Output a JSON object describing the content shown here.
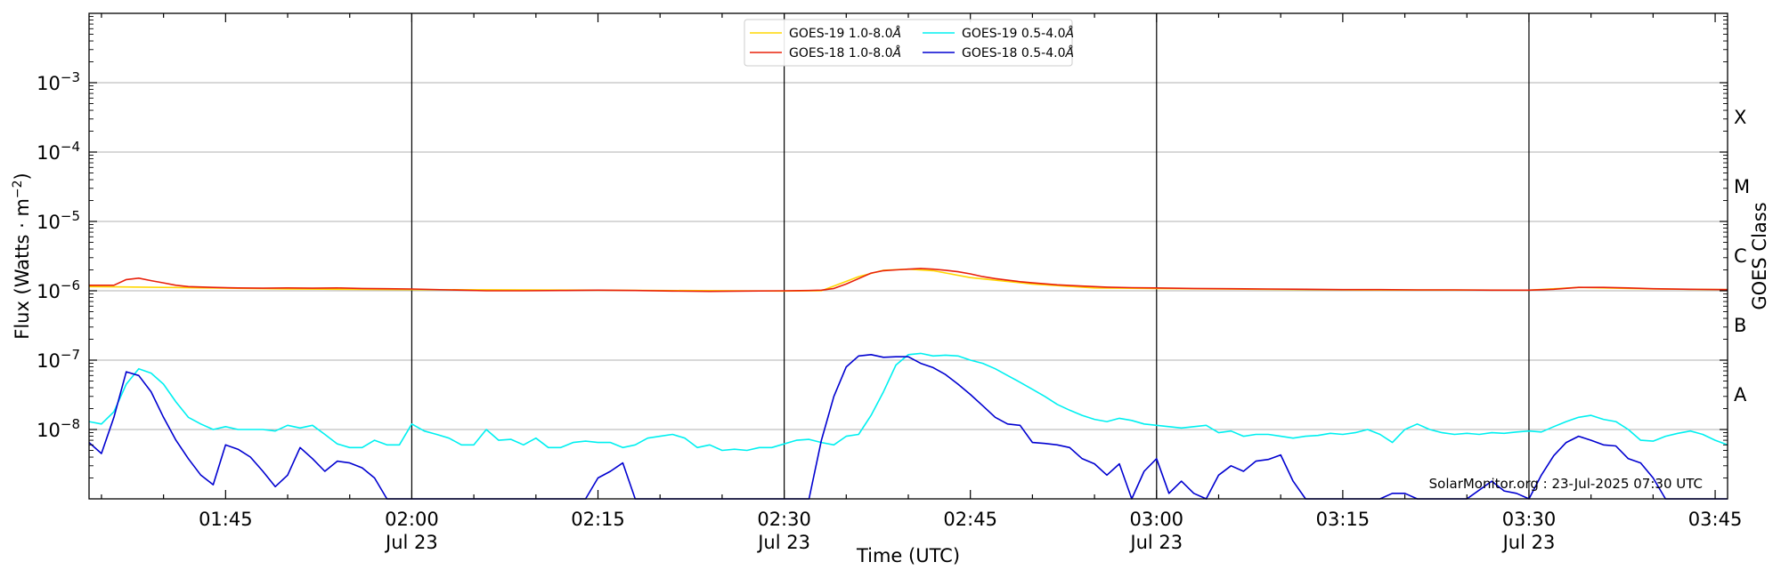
{
  "chart_data": {
    "type": "line",
    "title": "",
    "xlabel": "Time (UTC)",
    "ylabel": "Flux (Watts · m",
    "ylabel_sup": "−2",
    "ylabel_close": ")",
    "y2label": "GOES Class",
    "yscale": "log",
    "xlim": [
      "01:34",
      "03:46"
    ],
    "ylim": [
      1e-09,
      0.01
    ],
    "grid": "horizontal",
    "legend_position": "top-center",
    "credit": "SolarMonitor.org : 23-Jul-2025 07:30 UTC",
    "x_ticks": [
      {
        "value": "01:45",
        "label": "01:45",
        "sublabel": ""
      },
      {
        "value": "02:00",
        "label": "02:00",
        "sublabel": "Jul 23"
      },
      {
        "value": "02:15",
        "label": "02:15",
        "sublabel": ""
      },
      {
        "value": "02:30",
        "label": "02:30",
        "sublabel": "Jul 23"
      },
      {
        "value": "02:45",
        "label": "02:45",
        "sublabel": ""
      },
      {
        "value": "03:00",
        "label": "03:00",
        "sublabel": "Jul 23"
      },
      {
        "value": "03:15",
        "label": "03:15",
        "sublabel": ""
      },
      {
        "value": "03:30",
        "label": "03:30",
        "sublabel": "Jul 23"
      },
      {
        "value": "03:45",
        "label": "03:45",
        "sublabel": ""
      }
    ],
    "y_ticks": [
      {
        "value": 0.001,
        "base": "10",
        "exp": "−3"
      },
      {
        "value": 0.0001,
        "base": "10",
        "exp": "−4"
      },
      {
        "value": 1e-05,
        "base": "10",
        "exp": "−5"
      },
      {
        "value": 1e-06,
        "base": "10",
        "exp": "−6"
      },
      {
        "value": 1e-07,
        "base": "10",
        "exp": "−7"
      },
      {
        "value": 1e-08,
        "base": "10",
        "exp": "−8"
      }
    ],
    "vertical_lines": [
      "02:00",
      "02:30",
      "03:00",
      "03:30"
    ],
    "class_labels": [
      {
        "label": "X",
        "value": 0.000316
      },
      {
        "label": "M",
        "value": 3.16e-05
      },
      {
        "label": "C",
        "value": 3.16e-06
      },
      {
        "label": "B",
        "value": 3.16e-07
      },
      {
        "label": "A",
        "value": 3.16e-08
      }
    ],
    "legend_entries": [
      {
        "text": "GOES-19 1.0-8.0",
        "unit": "Å",
        "color": "#ffd700",
        "col": 0,
        "row": 0
      },
      {
        "text": "GOES-18 1.0-8.0",
        "unit": "Å",
        "color": "#e8200a",
        "col": 0,
        "row": 1
      },
      {
        "text": "GOES-19 0.5-4.0",
        "unit": "Å",
        "color": "#00f0f0",
        "col": 1,
        "row": 0
      },
      {
        "text": "GOES-18 0.5-4.0",
        "unit": "Å",
        "color": "#0000d0",
        "col": 1,
        "row": 1
      }
    ],
    "series": [
      {
        "name": "GOES-19 1.0-8.0Å",
        "color": "#ffd700",
        "x": [
          "01:34",
          "01:40",
          "01:50",
          "02:00",
          "02:15",
          "02:30",
          "02:33",
          "02:36",
          "02:38",
          "02:40",
          "02:42",
          "02:45",
          "02:50",
          "02:55",
          "03:00",
          "03:15",
          "03:30",
          "03:34",
          "03:40",
          "03:46"
        ],
        "values": [
          1.15e-06,
          1.12e-06,
          1.06e-06,
          1.04e-06,
          1.02e-06,
          9.9e-07,
          1e-06,
          1.6e-06,
          1.98e-06,
          2.05e-06,
          1.95e-06,
          1.55e-06,
          1.25e-06,
          1.1e-06,
          1.08e-06,
          1.03e-06,
          1.02e-06,
          1.12e-06,
          1.06e-06,
          1.04e-06
        ]
      },
      {
        "name": "GOES-18 1.0-8.0Å",
        "color": "#e8200a",
        "x": [
          "01:34",
          "01:35",
          "01:36",
          "01:37",
          "01:38",
          "01:39",
          "01:40",
          "01:41",
          "01:42",
          "01:44",
          "01:46",
          "01:48",
          "01:50",
          "01:52",
          "01:54",
          "01:56",
          "01:58",
          "02:00",
          "02:03",
          "02:06",
          "02:09",
          "02:12",
          "02:15",
          "02:18",
          "02:21",
          "02:24",
          "02:27",
          "02:30",
          "02:32",
          "02:33",
          "02:34",
          "02:35",
          "02:36",
          "02:37",
          "02:38",
          "02:39",
          "02:40",
          "02:41",
          "02:42",
          "02:43",
          "02:44",
          "02:45",
          "02:46",
          "02:47",
          "02:48",
          "02:49",
          "02:50",
          "02:52",
          "02:54",
          "02:56",
          "02:58",
          "03:00",
          "03:03",
          "03:06",
          "03:09",
          "03:12",
          "03:15",
          "03:18",
          "03:21",
          "03:24",
          "03:27",
          "03:30",
          "03:32",
          "03:34",
          "03:36",
          "03:38",
          "03:40",
          "03:43",
          "03:46"
        ],
        "values": [
          1.2e-06,
          1.2e-06,
          1.2e-06,
          1.45e-06,
          1.52e-06,
          1.4e-06,
          1.3e-06,
          1.2e-06,
          1.15e-06,
          1.12e-06,
          1.1e-06,
          1.09e-06,
          1.1e-06,
          1.09e-06,
          1.1e-06,
          1.08e-06,
          1.07e-06,
          1.06e-06,
          1.03e-06,
          1e-06,
          1e-06,
          1.01e-06,
          1.02e-06,
          1.01e-06,
          9.9e-07,
          9.8e-07,
          9.9e-07,
          1e-06,
          1.01e-06,
          1.02e-06,
          1.08e-06,
          1.25e-06,
          1.5e-06,
          1.8e-06,
          1.95e-06,
          2e-06,
          2.05e-06,
          2.1e-06,
          2.05e-06,
          1.98e-06,
          1.88e-06,
          1.75e-06,
          1.6e-06,
          1.5e-06,
          1.42e-06,
          1.35e-06,
          1.3e-06,
          1.22e-06,
          1.17e-06,
          1.13e-06,
          1.11e-06,
          1.1e-06,
          1.08e-06,
          1.07e-06,
          1.06e-06,
          1.05e-06,
          1.04e-06,
          1.04e-06,
          1.03e-06,
          1.03e-06,
          1.02e-06,
          1.02e-06,
          1.05e-06,
          1.12e-06,
          1.12e-06,
          1.1e-06,
          1.07e-06,
          1.05e-06,
          1.04e-06
        ]
      },
      {
        "name": "GOES-19 0.5-4.0Å",
        "color": "#00f0f0",
        "x": [
          "01:34",
          "01:35",
          "01:36",
          "01:37",
          "01:38",
          "01:39",
          "01:40",
          "01:41",
          "01:42",
          "01:43",
          "01:44",
          "01:45",
          "01:46",
          "01:47",
          "01:48",
          "01:49",
          "01:50",
          "01:51",
          "01:52",
          "01:53",
          "01:54",
          "01:55",
          "01:56",
          "01:57",
          "01:58",
          "01:59",
          "02:00",
          "02:01",
          "02:02",
          "02:03",
          "02:04",
          "02:05",
          "02:06",
          "02:07",
          "02:08",
          "02:09",
          "02:10",
          "02:11",
          "02:12",
          "02:13",
          "02:14",
          "02:15",
          "02:16",
          "02:17",
          "02:18",
          "02:19",
          "02:20",
          "02:21",
          "02:22",
          "02:23",
          "02:24",
          "02:25",
          "02:26",
          "02:27",
          "02:28",
          "02:29",
          "02:30",
          "02:31",
          "02:32",
          "02:33",
          "02:34",
          "02:35",
          "02:36",
          "02:37",
          "02:38",
          "02:39",
          "02:40",
          "02:41",
          "02:42",
          "02:43",
          "02:44",
          "02:45",
          "02:46",
          "02:47",
          "02:48",
          "02:49",
          "02:50",
          "02:51",
          "02:52",
          "02:53",
          "02:54",
          "02:55",
          "02:56",
          "02:57",
          "02:58",
          "02:59",
          "03:00",
          "03:01",
          "03:02",
          "03:03",
          "03:04",
          "03:05",
          "03:06",
          "03:07",
          "03:08",
          "03:09",
          "03:10",
          "03:11",
          "03:12",
          "03:13",
          "03:14",
          "03:15",
          "03:16",
          "03:17",
          "03:18",
          "03:19",
          "03:20",
          "03:21",
          "03:22",
          "03:23",
          "03:24",
          "03:25",
          "03:26",
          "03:27",
          "03:28",
          "03:29",
          "03:30",
          "03:31",
          "03:32",
          "03:33",
          "03:34",
          "03:35",
          "03:36",
          "03:37",
          "03:38",
          "03:39",
          "03:40",
          "03:41",
          "03:42",
          "03:43",
          "03:44",
          "03:45",
          "03:46"
        ],
        "values": [
          1.3e-08,
          1.2e-08,
          1.8e-08,
          4.5e-08,
          7.5e-08,
          6.5e-08,
          4.5e-08,
          2.5e-08,
          1.5e-08,
          1.2e-08,
          1e-08,
          1.1e-08,
          1e-08,
          1e-08,
          1e-08,
          9.5e-09,
          1.15e-08,
          1.05e-08,
          1.15e-08,
          8.5e-09,
          6.2e-09,
          5.5e-09,
          5.5e-09,
          7e-09,
          6e-09,
          6e-09,
          1.2e-08,
          9.5e-09,
          8.5e-09,
          7.5e-09,
          6e-09,
          6e-09,
          1e-08,
          7e-09,
          7.2e-09,
          6e-09,
          7.5e-09,
          5.5e-09,
          5.5e-09,
          6.5e-09,
          6.8e-09,
          6.5e-09,
          6.5e-09,
          5.5e-09,
          6e-09,
          7.5e-09,
          8e-09,
          8.5e-09,
          7.5e-09,
          5.5e-09,
          6e-09,
          5e-09,
          5.2e-09,
          5e-09,
          5.5e-09,
          5.5e-09,
          6.2e-09,
          7e-09,
          7.2e-09,
          6.5e-09,
          6e-09,
          8e-09,
          8.5e-09,
          1.6e-08,
          3.5e-08,
          8.5e-08,
          1.2e-07,
          1.25e-07,
          1.15e-07,
          1.18e-07,
          1.15e-07,
          1e-07,
          9e-08,
          7.5e-08,
          6e-08,
          4.8e-08,
          3.8e-08,
          3e-08,
          2.3e-08,
          1.9e-08,
          1.6e-08,
          1.4e-08,
          1.3e-08,
          1.45e-08,
          1.35e-08,
          1.2e-08,
          1.15e-08,
          1.1e-08,
          1.05e-08,
          1.1e-08,
          1.15e-08,
          9e-09,
          9.5e-09,
          8e-09,
          8.5e-09,
          8.5e-09,
          8e-09,
          7.5e-09,
          8e-09,
          8.2e-09,
          8.8e-09,
          8.5e-09,
          9e-09,
          1e-08,
          8.5e-09,
          6.5e-09,
          1e-08,
          1.2e-08,
          1e-08,
          9e-09,
          8.5e-09,
          8.8e-09,
          8.5e-09,
          9e-09,
          8.8e-09,
          9.2e-09,
          9.5e-09,
          9.2e-09,
          1.1e-08,
          1.3e-08,
          1.5e-08,
          1.6e-08,
          1.4e-08,
          1.3e-08,
          1e-08,
          7e-09,
          6.8e-09,
          8e-09,
          8.8e-09,
          9.5e-09,
          8.5e-09,
          7e-09,
          6e-09
        ]
      },
      {
        "name": "GOES-18 0.5-4.0Å",
        "color": "#0000d0",
        "x": [
          "01:34",
          "01:35",
          "01:36",
          "01:37",
          "01:38",
          "01:39",
          "01:40",
          "01:41",
          "01:42",
          "01:43",
          "01:44",
          "01:45",
          "01:46",
          "01:47",
          "01:48",
          "01:49",
          "01:50",
          "01:51",
          "01:52",
          "01:53",
          "01:54",
          "01:55",
          "01:56",
          "01:57",
          "01:58",
          "01:59",
          "02:00",
          "02:05",
          "02:10",
          "02:14",
          "02:15",
          "02:16",
          "02:17",
          "02:18",
          "02:19",
          "02:20",
          "02:25",
          "02:30",
          "02:31",
          "02:32",
          "02:33",
          "02:34",
          "02:35",
          "02:36",
          "02:37",
          "02:38",
          "02:39",
          "02:40",
          "02:41",
          "02:42",
          "02:43",
          "02:44",
          "02:45",
          "02:46",
          "02:47",
          "02:48",
          "02:49",
          "02:50",
          "02:51",
          "02:52",
          "02:53",
          "02:54",
          "02:55",
          "02:56",
          "02:57",
          "02:58",
          "02:59",
          "03:00",
          "03:01",
          "03:02",
          "03:03",
          "03:04",
          "03:05",
          "03:06",
          "03:07",
          "03:08",
          "03:09",
          "03:10",
          "03:11",
          "03:12",
          "03:13",
          "03:15",
          "03:18",
          "03:19",
          "03:20",
          "03:21",
          "03:22",
          "03:25",
          "03:27",
          "03:28",
          "03:29",
          "03:30",
          "03:31",
          "03:32",
          "03:33",
          "03:34",
          "03:35",
          "03:36",
          "03:37",
          "03:38",
          "03:39",
          "03:40",
          "03:41",
          "03:42",
          "03:46"
        ],
        "values": [
          6.5e-09,
          4.5e-09,
          1.5e-08,
          6.8e-08,
          6e-08,
          3.5e-08,
          1.5e-08,
          7e-09,
          3.8e-09,
          2.2e-09,
          1.6e-09,
          6e-09,
          5.2e-09,
          4e-09,
          2.5e-09,
          1.5e-09,
          2.2e-09,
          5.5e-09,
          3.8e-09,
          2.5e-09,
          3.5e-09,
          3.3e-09,
          2.8e-09,
          2e-09,
          1e-09,
          1e-09,
          1e-09,
          1e-09,
          1e-09,
          1e-09,
          2e-09,
          2.5e-09,
          3.3e-09,
          1e-09,
          1e-09,
          1e-09,
          1e-09,
          1e-09,
          1e-09,
          1e-09,
          7e-09,
          3e-08,
          8e-08,
          1.15e-07,
          1.2e-07,
          1.1e-07,
          1.12e-07,
          1.12e-07,
          9e-08,
          7.8e-08,
          6.2e-08,
          4.5e-08,
          3.2e-08,
          2.2e-08,
          1.5e-08,
          1.2e-08,
          1.15e-08,
          6.5e-09,
          6.3e-09,
          6e-09,
          5.5e-09,
          3.8e-09,
          3.2e-09,
          2.2e-09,
          3.2e-09,
          1e-09,
          2.5e-09,
          3.8e-09,
          1.2e-09,
          1.8e-09,
          1.2e-09,
          1e-09,
          2.2e-09,
          3e-09,
          2.5e-09,
          3.5e-09,
          3.7e-09,
          4.3e-09,
          1.8e-09,
          1e-09,
          1e-09,
          1e-09,
          1e-09,
          1.2e-09,
          1.2e-09,
          1e-09,
          1e-09,
          1e-09,
          1.8e-09,
          1.3e-09,
          1.2e-09,
          1e-09,
          2.2e-09,
          4.2e-09,
          6.5e-09,
          8e-09,
          7e-09,
          6e-09,
          5.8e-09,
          3.8e-09,
          3.3e-09,
          2e-09,
          1e-09,
          1e-09,
          1e-09
        ]
      }
    ]
  }
}
